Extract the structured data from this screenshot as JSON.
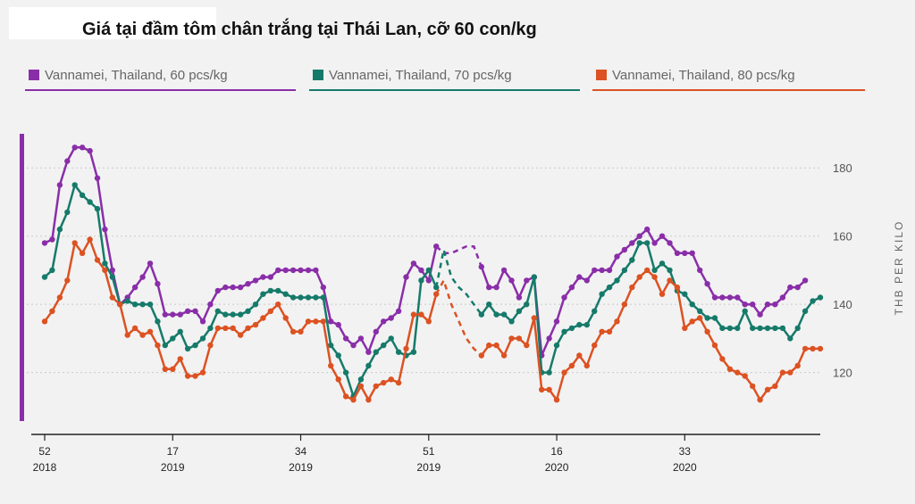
{
  "title": "Giá tại đầm tôm chân trắng tại Thái Lan, cỡ 60 con/kg",
  "colors": {
    "s60": "#8a2ea8",
    "s70": "#167a6a",
    "s80": "#dc5222",
    "grid": "#c9c9c9",
    "axis": "#222222",
    "tick": "#555555"
  },
  "chart_data": {
    "type": "line",
    "ylabel": "THB PER KILO",
    "ylim": [
      105,
      190
    ],
    "yticks": [
      120,
      140,
      160,
      180
    ],
    "xticks": [
      {
        "week": "52",
        "year": "2018",
        "index": 0
      },
      {
        "week": "17",
        "year": "2019",
        "index": 17
      },
      {
        "week": "34",
        "year": "2019",
        "index": 34
      },
      {
        "week": "51",
        "year": "2019",
        "index": 51
      },
      {
        "week": "16",
        "year": "2020",
        "index": 68
      },
      {
        "week": "33",
        "year": "2020",
        "index": 85
      }
    ],
    "gap": [
      52,
      58
    ],
    "series": [
      {
        "name": "Vannamei, Thailand, 60 pcs/kg",
        "key": "s60",
        "values": [
          158,
          159,
          175,
          182,
          186,
          186,
          185,
          177,
          162,
          150,
          140,
          142,
          145,
          148,
          152,
          146,
          137,
          137,
          137,
          138,
          138,
          135,
          140,
          144,
          145,
          145,
          145,
          146,
          147,
          148,
          148,
          150,
          150,
          150,
          150,
          150,
          150,
          145,
          135,
          134,
          130,
          128,
          130,
          126,
          132,
          135,
          136,
          138,
          148,
          152,
          150,
          147,
          157,
          155,
          155,
          156,
          157,
          157,
          151,
          145,
          145,
          150,
          147,
          142,
          147,
          148,
          125,
          130,
          135,
          142,
          145,
          148,
          147,
          150,
          150,
          150,
          154,
          156,
          158,
          160,
          162,
          158,
          160,
          158,
          155,
          155,
          155,
          150,
          146,
          142,
          142,
          142,
          142,
          140,
          140,
          137,
          140,
          140,
          142,
          145,
          145,
          147
        ]
      },
      {
        "name": "Vannamei, Thailand, 70 pcs/kg",
        "key": "s70",
        "values": [
          148,
          150,
          162,
          167,
          175,
          172,
          170,
          168,
          152,
          148,
          140,
          141,
          140,
          140,
          140,
          135,
          128,
          130,
          132,
          127,
          128,
          130,
          133,
          138,
          137,
          137,
          137,
          138,
          140,
          143,
          144,
          144,
          143,
          142,
          142,
          142,
          142,
          142,
          128,
          125,
          120,
          113,
          118,
          122,
          126,
          128,
          130,
          126,
          125,
          126,
          147,
          150,
          145,
          156,
          148,
          145,
          143,
          140,
          137,
          140,
          137,
          137,
          135,
          138,
          140,
          148,
          120,
          120,
          128,
          132,
          133,
          134,
          134,
          138,
          143,
          145,
          147,
          150,
          153,
          158,
          158,
          150,
          152,
          150,
          144,
          143,
          140,
          138,
          136,
          136,
          133,
          133,
          133,
          138,
          133,
          133,
          133,
          133,
          133,
          130,
          133,
          138,
          141,
          142
        ]
      },
      {
        "name": "Vannamei, Thailand, 80 pcs/kg",
        "key": "s80",
        "values": [
          135,
          138,
          142,
          147,
          158,
          155,
          159,
          153,
          150,
          142,
          140,
          131,
          133,
          131,
          132,
          128,
          121,
          121,
          124,
          119,
          119,
          120,
          128,
          133,
          133,
          133,
          131,
          133,
          134,
          136,
          138,
          140,
          136,
          132,
          132,
          135,
          135,
          135,
          122,
          118,
          113,
          112,
          116,
          112,
          116,
          117,
          118,
          117,
          127,
          137,
          137,
          135,
          143,
          147,
          140,
          135,
          130,
          127,
          125,
          128,
          128,
          125,
          130,
          130,
          128,
          136,
          115,
          115,
          112,
          120,
          122,
          125,
          122,
          128,
          132,
          132,
          135,
          140,
          145,
          148,
          150,
          148,
          143,
          147,
          145,
          133,
          135,
          136,
          132,
          128,
          124,
          121,
          120,
          119,
          116,
          112,
          115,
          116,
          120,
          120,
          122,
          127,
          127,
          127
        ]
      }
    ]
  },
  "legend": [
    {
      "label": "Vannamei, Thailand, 60 pcs/kg",
      "key": "s60"
    },
    {
      "label": "Vannamei, Thailand, 70 pcs/kg",
      "key": "s70"
    },
    {
      "label": "Vannamei, Thailand, 80 pcs/kg",
      "key": "s80"
    }
  ]
}
